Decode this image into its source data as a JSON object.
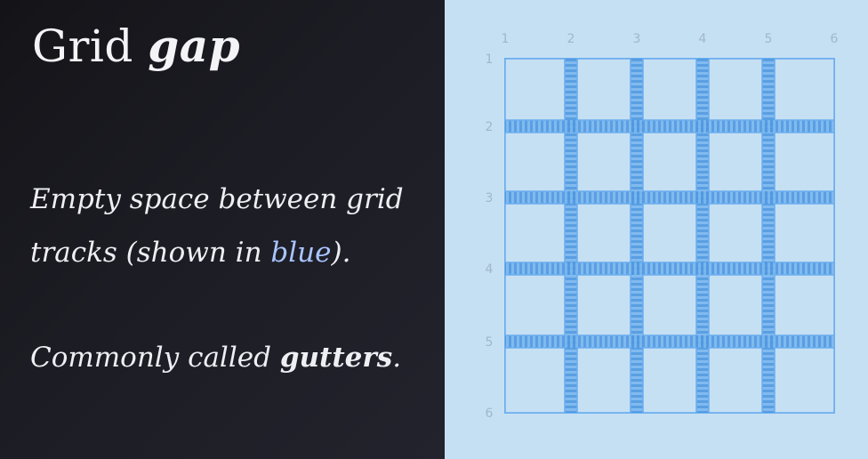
{
  "slide": {
    "title_regular": "Grid",
    "title_bold": "gap",
    "paragraph1_line1": "Empty space between grid",
    "paragraph1_line2_start": "tracks (shown in ",
    "paragraph1_line2_accent": "blue",
    "paragraph1_line2_end": ").",
    "paragraph2_start": "Commonly called ",
    "paragraph2_bold": "gutters",
    "paragraph2_end": "."
  },
  "grid_diagram": {
    "column_line_labels": [
      "1",
      "2",
      "3",
      "4",
      "5",
      "6"
    ],
    "row_line_labels": [
      "1",
      "2",
      "3",
      "4",
      "5",
      "6"
    ],
    "gap_color": "#5aa2e6",
    "track_border_color": "#6aaef0",
    "background_color": "#c6e0f3"
  },
  "colors": {
    "left_background": "#1c1c24",
    "title_text": "#f4f4f7",
    "accent_blue_text": "#a9c4ff"
  }
}
